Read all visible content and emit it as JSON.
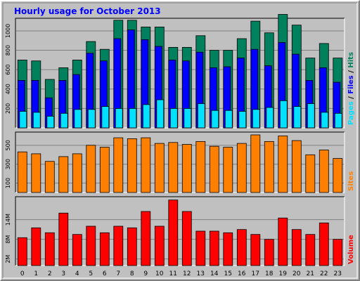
{
  "title": "Hourly usage for October 2013",
  "colors": {
    "background": "#c0c0c0",
    "frame_light": "#ffffff",
    "frame_dark": "#808080",
    "title": "#0000ff",
    "grid": "#808080",
    "hits": "#00805c",
    "files": "#0000ff",
    "pages": "#00e0ff",
    "sites": "#ff8000",
    "volume": "#ff0000",
    "axis_text": "#000000"
  },
  "chart_data": [
    {
      "type": "bar",
      "panel": "hits-files-pages",
      "title": "Hourly usage for October 2013",
      "categories": [
        "0",
        "1",
        "2",
        "3",
        "4",
        "5",
        "6",
        "7",
        "8",
        "9",
        "10",
        "11",
        "12",
        "13",
        "14",
        "15",
        "16",
        "17",
        "18",
        "19",
        "20",
        "21",
        "22",
        "23"
      ],
      "legend": [
        {
          "text": "Pages",
          "color": "#00e0ff"
        },
        {
          "text": " / ",
          "color": "#000000"
        },
        {
          "text": "Files",
          "color": "#0000ff"
        },
        {
          "text": " / ",
          "color": "#000000"
        },
        {
          "text": "Hits",
          "color": "#00805c"
        }
      ],
      "legend_position": "right",
      "yticks": [
        "200",
        "400",
        "600",
        "800",
        "1000"
      ],
      "ylim": [
        0,
        1130
      ],
      "grid": true,
      "series": [
        {
          "name": "Hits",
          "values": [
            700,
            690,
            500,
            620,
            700,
            890,
            810,
            1110,
            1110,
            1040,
            1040,
            830,
            830,
            950,
            800,
            800,
            920,
            1100,
            980,
            1170,
            1060,
            720,
            870,
            720
          ]
        },
        {
          "name": "Files",
          "values": [
            490,
            490,
            310,
            490,
            550,
            770,
            690,
            920,
            1010,
            910,
            840,
            700,
            690,
            780,
            620,
            630,
            720,
            810,
            640,
            880,
            760,
            490,
            620,
            470
          ]
        },
        {
          "name": "Pages",
          "values": [
            170,
            160,
            120,
            150,
            190,
            190,
            220,
            200,
            200,
            240,
            290,
            200,
            200,
            250,
            180,
            180,
            170,
            190,
            210,
            280,
            220,
            250,
            160,
            150
          ]
        }
      ]
    },
    {
      "type": "bar",
      "panel": "sites",
      "categories": [
        "0",
        "1",
        "2",
        "3",
        "4",
        "5",
        "6",
        "7",
        "8",
        "9",
        "10",
        "11",
        "12",
        "13",
        "14",
        "15",
        "16",
        "17",
        "18",
        "19",
        "20",
        "21",
        "22",
        "23"
      ],
      "legend": [
        {
          "text": "Sites",
          "color": "#ff8000"
        }
      ],
      "legend_position": "right",
      "yticks": [
        "100",
        "300",
        "500"
      ],
      "ylim": [
        0,
        640
      ],
      "grid": true,
      "series": [
        {
          "name": "Sites",
          "values": [
            430,
            410,
            330,
            380,
            410,
            500,
            480,
            580,
            570,
            580,
            520,
            530,
            510,
            540,
            490,
            480,
            520,
            610,
            540,
            600,
            550,
            400,
            450,
            360
          ]
        }
      ]
    },
    {
      "type": "bar",
      "panel": "volume",
      "categories": [
        "0",
        "1",
        "2",
        "3",
        "4",
        "5",
        "6",
        "7",
        "8",
        "9",
        "10",
        "11",
        "12",
        "13",
        "14",
        "15",
        "16",
        "17",
        "18",
        "19",
        "20",
        "21",
        "22",
        "23"
      ],
      "legend": [
        {
          "text": "Volume",
          "color": "#ff0000"
        }
      ],
      "legend_position": "right",
      "yticks": [
        "2M",
        "8M",
        "14M"
      ],
      "ylim": [
        0,
        21
      ],
      "grid": true,
      "series": [
        {
          "name": "Volume",
          "values": [
            8.5,
            11.5,
            10,
            16,
            9.5,
            12,
            10,
            12,
            11.5,
            16.5,
            12,
            20,
            16.5,
            10.5,
            10.5,
            10,
            11,
            9.5,
            8,
            14.5,
            11,
            9.5,
            13,
            8
          ]
        }
      ]
    }
  ]
}
